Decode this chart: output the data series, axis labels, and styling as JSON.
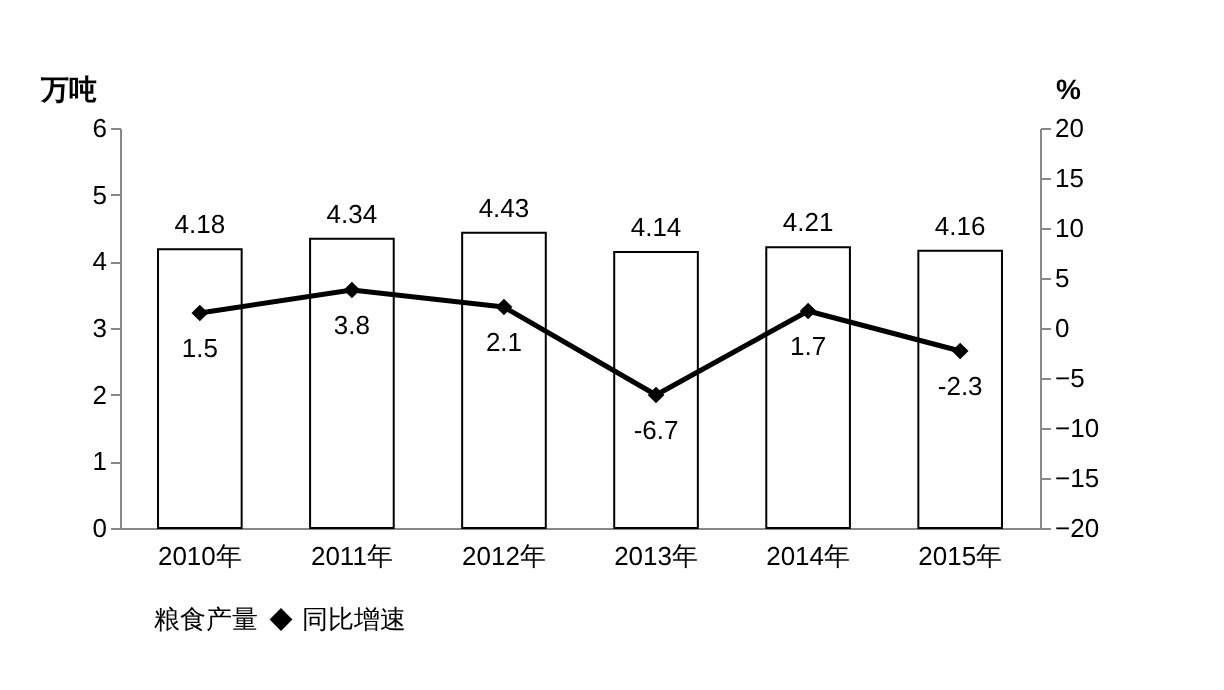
{
  "chart_data": {
    "type": "bar",
    "categories": [
      "2010年",
      "2011年",
      "2012年",
      "2013年",
      "2014年",
      "2015年"
    ],
    "ylabel": "万吨",
    "y2label": "%",
    "series": [
      {
        "name": "粮食产量",
        "color": "#ffffff",
        "values": [
          4.18,
          4.34,
          4.43,
          4.14,
          4.21,
          4.16
        ]
      },
      {
        "name": "同比增速",
        "type": "line",
        "axis": "y2",
        "color": "#000000",
        "marker": "diamond",
        "line_style": "solid",
        "values": [
          1.5,
          3.8,
          2.1,
          -6.7,
          1.7,
          -2.3
        ]
      }
    ],
    "ylim": [
      0,
      6
    ],
    "yticks": [
      0,
      1,
      2,
      3,
      4,
      5,
      6
    ],
    "y2lim": [
      -20,
      20
    ],
    "y2ticks": [
      -20,
      -15,
      -10,
      -5,
      0,
      5,
      10,
      15,
      20
    ],
    "data_labels": true,
    "grid": false,
    "legend": "bottom"
  }
}
